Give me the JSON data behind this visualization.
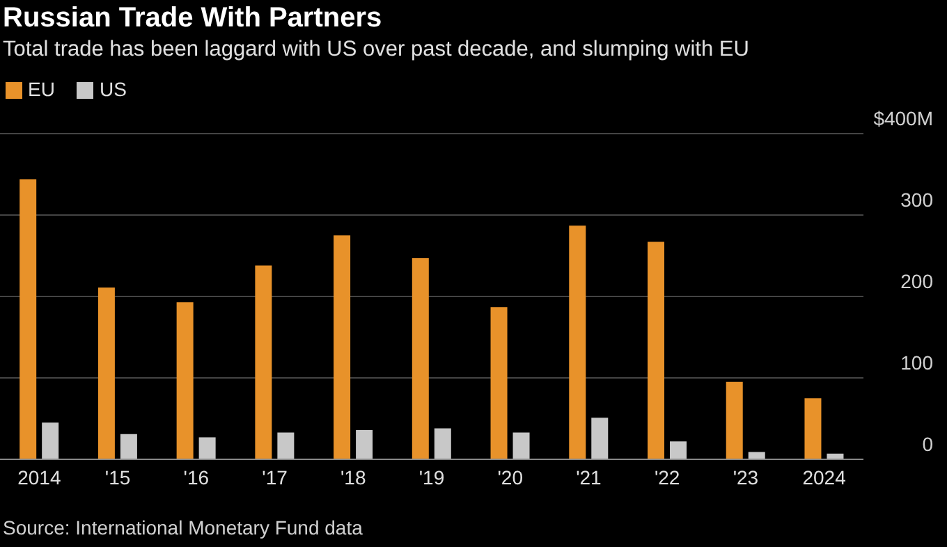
{
  "chart_data": {
    "type": "bar",
    "title": "Russian Trade With Partners",
    "subtitle": "Total trade has been laggard with US over past decade, and slumping with EU",
    "annotations": [
      "Source: International Monetary Fund data"
    ],
    "categories": [
      "2014",
      "'15",
      "'16",
      "'17",
      "'18",
      "'19",
      "'20",
      "'21",
      "'22",
      "'23",
      "2024"
    ],
    "series": [
      {
        "name": "EU",
        "color": "#e8922a",
        "values": [
          344,
          211,
          193,
          238,
          275,
          247,
          187,
          287,
          267,
          95,
          75
        ]
      },
      {
        "name": "US",
        "color": "#c8c8c8",
        "values": [
          45,
          31,
          27,
          33,
          36,
          38,
          33,
          51,
          22,
          9,
          7
        ]
      }
    ],
    "ylim": [
      0,
      400
    ],
    "yticks": [
      0,
      100,
      200,
      300,
      {
        "value": 400,
        "label": "$400M"
      }
    ],
    "grid": "y",
    "legend": "top left"
  }
}
